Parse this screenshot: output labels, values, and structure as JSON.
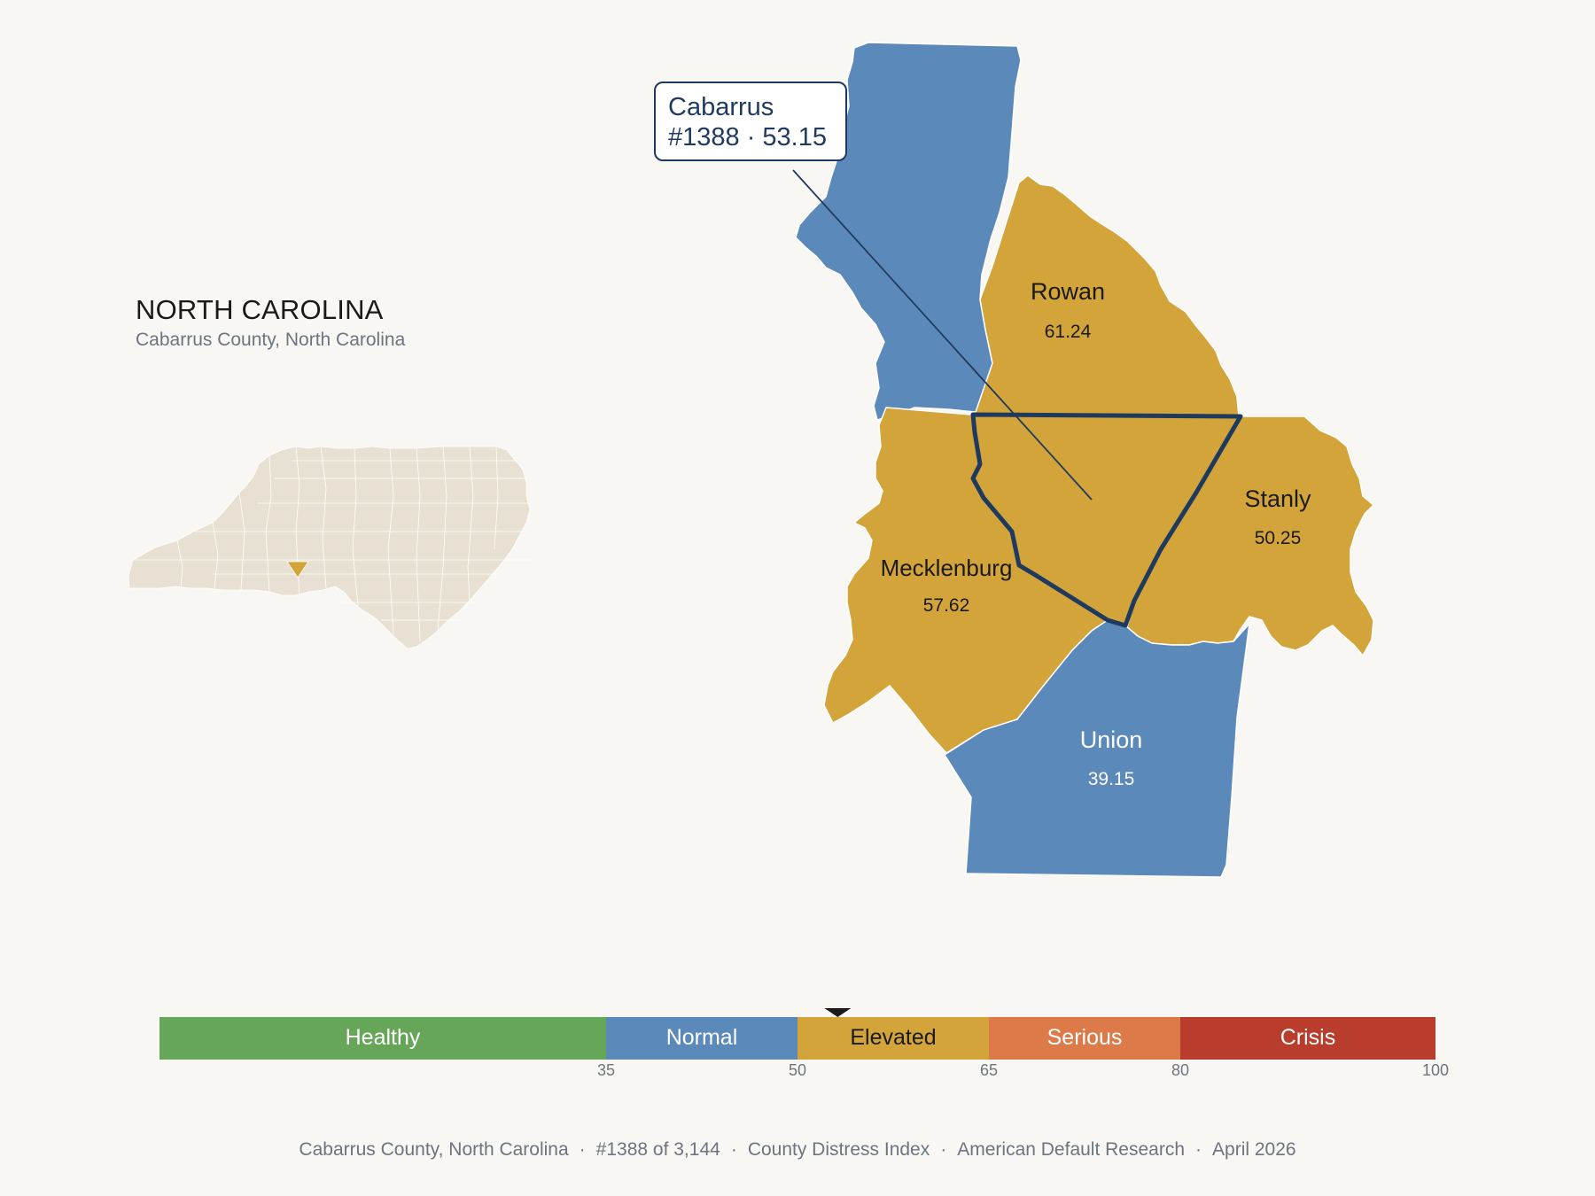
{
  "header": {
    "state": "NORTH CAROLINA",
    "subtitle": "Cabarrus County, North Carolina"
  },
  "callout": {
    "name": "Cabarrus",
    "detail": "#1388 · 53.15"
  },
  "counties": [
    {
      "key": "rowan",
      "name": "Rowan",
      "value": "61.24",
      "status": "Elevated"
    },
    {
      "key": "stanly",
      "name": "Stanly",
      "value": "50.25",
      "status": "Elevated"
    },
    {
      "key": "mecklenburg",
      "name": "Mecklenburg",
      "value": "57.62",
      "status": "Elevated"
    },
    {
      "key": "union",
      "name": "Union",
      "value": "39.15",
      "status": "Normal"
    },
    {
      "key": "cabarrus",
      "name": "Cabarrus",
      "value": "53.15",
      "status": "Elevated",
      "selected": true
    },
    {
      "key": "iredell",
      "name": "",
      "value": "",
      "status": "Normal"
    }
  ],
  "legend": {
    "bands": [
      {
        "label": "Healthy",
        "color": "#66a659",
        "text_color": "#ffffff"
      },
      {
        "label": "Normal",
        "color": "#5b8aba",
        "text_color": "#ffffff"
      },
      {
        "label": "Elevated",
        "color": "#d3a43a",
        "text_color": "#1a1a1a"
      },
      {
        "label": "Serious",
        "color": "#dd7a4a",
        "text_color": "#ffffff"
      },
      {
        "label": "Crisis",
        "color": "#b93c2c",
        "text_color": "#ffffff"
      }
    ],
    "ticks": [
      "35",
      "50",
      "65",
      "80",
      "100"
    ],
    "marker_value": 53.15
  },
  "footer": {
    "county": "Cabarrus County, North Carolina",
    "rank": "#1388 of 3,144",
    "index": "County Distress Index",
    "source": "American Default Research",
    "date": "April 2026"
  },
  "colors": {
    "elevated": "#d3a43a",
    "normal": "#5b8aba",
    "highlight_outline": "#1f3a5f",
    "inset_fill": "#e8e1d3",
    "background": "#f9f7f3"
  }
}
